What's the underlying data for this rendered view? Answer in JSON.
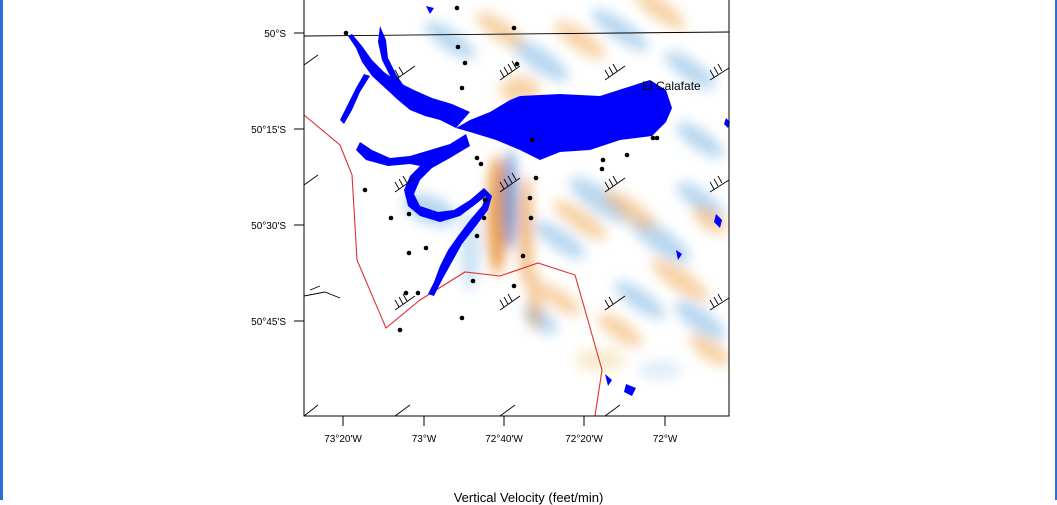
{
  "map": {
    "city_label": "El Calafate",
    "lat_ticks": [
      "50°S",
      "50°15'S",
      "50°30'S",
      "50°45'S"
    ],
    "lon_ticks": [
      "73°20'W",
      "73°W",
      "72°40'W",
      "72°20'W",
      "72°W"
    ]
  },
  "caption": "Vertical Velocity  (feet/min)",
  "colors": {
    "water": "#0000ff",
    "border": "#e03030",
    "upward": "#4a90d0",
    "downward": "#e89030"
  }
}
